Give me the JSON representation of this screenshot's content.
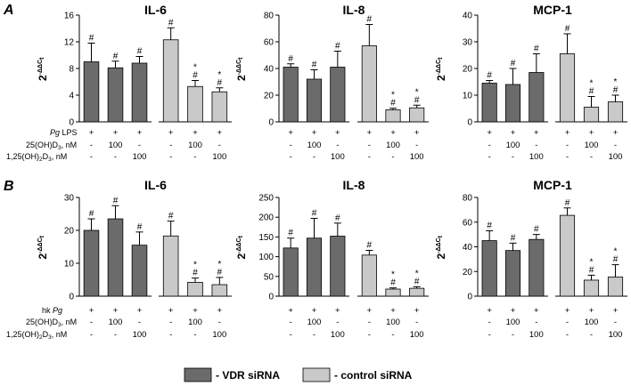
{
  "panels": [
    {
      "label": "A",
      "charts": [
        {
          "type": "bar",
          "title": "IL-6",
          "ylabel": "2^-ΔΔCt",
          "ylim": [
            0,
            16
          ],
          "yticks": [
            "0",
            "4",
            "8",
            "12",
            "16"
          ],
          "bars": [
            {
              "group": "VDR siRNA",
              "value": 9.0,
              "error": 2.8,
              "marks": [
                "#"
              ]
            },
            {
              "group": "VDR siRNA",
              "value": 8.1,
              "error": 1.0,
              "marks": [
                "#"
              ]
            },
            {
              "group": "VDR siRNA",
              "value": 8.8,
              "error": 1.0,
              "marks": [
                "#"
              ]
            },
            {
              "group": "control siRNA",
              "value": 12.3,
              "error": 1.8,
              "marks": [
                "#"
              ]
            },
            {
              "group": "control siRNA",
              "value": 5.3,
              "error": 0.9,
              "marks": [
                "#",
                "*"
              ]
            },
            {
              "group": "control siRNA",
              "value": 4.5,
              "error": 0.6,
              "marks": [
                "#",
                "*"
              ]
            }
          ],
          "conditions": [
            [
              "+",
              "+",
              "+",
              "+",
              "+",
              "+"
            ],
            [
              "-",
              "100",
              "-",
              "-",
              "100",
              "-"
            ],
            [
              "-",
              "-",
              "100",
              "-",
              "-",
              "100"
            ]
          ]
        },
        {
          "type": "bar",
          "title": "IL-8",
          "ylabel": "2^-ΔΔCt",
          "ylim": [
            0,
            80
          ],
          "yticks": [
            "0",
            "20",
            "40",
            "60",
            "80"
          ],
          "bars": [
            {
              "group": "VDR siRNA",
              "value": 41,
              "error": 2.5,
              "marks": [
                "#"
              ]
            },
            {
              "group": "VDR siRNA",
              "value": 32,
              "error": 7,
              "marks": [
                "#"
              ]
            },
            {
              "group": "VDR siRNA",
              "value": 41,
              "error": 12,
              "marks": [
                "#"
              ]
            },
            {
              "group": "control siRNA",
              "value": 57,
              "error": 16,
              "marks": [
                "#"
              ]
            },
            {
              "group": "control siRNA",
              "value": 9,
              "error": 1.2,
              "marks": [
                "#",
                "*"
              ]
            },
            {
              "group": "control siRNA",
              "value": 10.5,
              "error": 2,
              "marks": [
                "#",
                "*"
              ]
            }
          ],
          "conditions": [
            [
              "+",
              "+",
              "+",
              "+",
              "+",
              "+"
            ],
            [
              "-",
              "100",
              "-",
              "-",
              "100",
              "-"
            ],
            [
              "-",
              "-",
              "100",
              "-",
              "-",
              "100"
            ]
          ]
        },
        {
          "type": "bar",
          "title": "MCP-1",
          "ylabel": "2^-ΔΔCt",
          "ylim": [
            0,
            40
          ],
          "yticks": [
            "0",
            "10",
            "20",
            "30",
            "40"
          ],
          "bars": [
            {
              "group": "VDR siRNA",
              "value": 14.5,
              "error": 1,
              "marks": [
                "#"
              ]
            },
            {
              "group": "VDR siRNA",
              "value": 14,
              "error": 6,
              "marks": [
                "#"
              ]
            },
            {
              "group": "VDR siRNA",
              "value": 18.5,
              "error": 7,
              "marks": [
                "#"
              ]
            },
            {
              "group": "control siRNA",
              "value": 25.5,
              "error": 7.5,
              "marks": [
                "#"
              ]
            },
            {
              "group": "control siRNA",
              "value": 5.5,
              "error": 4,
              "marks": [
                "#",
                "*"
              ]
            },
            {
              "group": "control siRNA",
              "value": 7.5,
              "error": 2.5,
              "marks": [
                "#",
                "*"
              ]
            }
          ],
          "conditions": [
            [
              "+",
              "+",
              "+",
              "+",
              "+",
              "+"
            ],
            [
              "-",
              "100",
              "-",
              "-",
              "100",
              "-"
            ],
            [
              "-",
              "-",
              "100",
              "-",
              "-",
              "100"
            ]
          ]
        }
      ],
      "row_labels": [
        {
          "pre": "Pg",
          "post": " LPS"
        },
        {
          "pre": "25(OH)D",
          "sub": "3",
          "post": ", nM"
        },
        {
          "pre": "1,25(OH)",
          "sub1": "2",
          "mid": "D",
          "sub": "3",
          "post": ", nM"
        }
      ]
    },
    {
      "label": "B",
      "charts": [
        {
          "type": "bar",
          "title": "IL-6",
          "ylabel": "2^-ΔΔCt",
          "ylim": [
            0,
            30
          ],
          "yticks": [
            "0",
            "10",
            "20",
            "30"
          ],
          "bars": [
            {
              "group": "VDR siRNA",
              "value": 20,
              "error": 3.5,
              "marks": [
                "#"
              ]
            },
            {
              "group": "VDR siRNA",
              "value": 23.5,
              "error": 4,
              "marks": [
                "#"
              ]
            },
            {
              "group": "VDR siRNA",
              "value": 15.5,
              "error": 4,
              "marks": [
                "#"
              ]
            },
            {
              "group": "control siRNA",
              "value": 18.3,
              "error": 4.5,
              "marks": [
                "#"
              ]
            },
            {
              "group": "control siRNA",
              "value": 4.2,
              "error": 1.3,
              "marks": [
                "#",
                "*"
              ]
            },
            {
              "group": "control siRNA",
              "value": 3.5,
              "error": 2.2,
              "marks": [
                "#",
                "*"
              ]
            }
          ],
          "conditions": [
            [
              "+",
              "+",
              "+",
              "+",
              "+",
              "+"
            ],
            [
              "-",
              "100",
              "-",
              "-",
              "100",
              "-"
            ],
            [
              "-",
              "-",
              "100",
              "-",
              "-",
              "100"
            ]
          ]
        },
        {
          "type": "bar",
          "title": "IL-8",
          "ylabel": "2^-ΔΔCt",
          "ylim": [
            0,
            250
          ],
          "yticks": [
            "0",
            "50",
            "100",
            "150",
            "200",
            "250"
          ],
          "bars": [
            {
              "group": "VDR siRNA",
              "value": 122,
              "error": 25,
              "marks": [
                "#"
              ]
            },
            {
              "group": "VDR siRNA",
              "value": 147,
              "error": 50,
              "marks": [
                "#"
              ]
            },
            {
              "group": "VDR siRNA",
              "value": 152,
              "error": 33,
              "marks": [
                "#"
              ]
            },
            {
              "group": "control siRNA",
              "value": 104,
              "error": 12,
              "marks": [
                "#"
              ]
            },
            {
              "group": "control siRNA",
              "value": 18,
              "error": 3,
              "marks": [
                "#",
                "*"
              ]
            },
            {
              "group": "control siRNA",
              "value": 20,
              "error": 4,
              "marks": [
                "#",
                "*"
              ]
            }
          ],
          "conditions": [
            [
              "+",
              "+",
              "+",
              "+",
              "+",
              "+"
            ],
            [
              "-",
              "100",
              "-",
              "-",
              "100",
              "-"
            ],
            [
              "-",
              "-",
              "100",
              "-",
              "-",
              "100"
            ]
          ]
        },
        {
          "type": "bar",
          "title": "MCP-1",
          "ylabel": "2^-ΔΔCt",
          "ylim": [
            0,
            80
          ],
          "yticks": [
            "0",
            "20",
            "40",
            "60",
            "80"
          ],
          "bars": [
            {
              "group": "VDR siRNA",
              "value": 45,
              "error": 8,
              "marks": [
                "#"
              ]
            },
            {
              "group": "VDR siRNA",
              "value": 37,
              "error": 6,
              "marks": [
                "#"
              ]
            },
            {
              "group": "VDR siRNA",
              "value": 46,
              "error": 4,
              "marks": [
                "#"
              ]
            },
            {
              "group": "control siRNA",
              "value": 65.5,
              "error": 6,
              "marks": [
                "#"
              ]
            },
            {
              "group": "control siRNA",
              "value": 13,
              "error": 4,
              "marks": [
                "#",
                "*"
              ]
            },
            {
              "group": "control siRNA",
              "value": 15.5,
              "error": 10,
              "marks": [
                "#",
                "*"
              ]
            }
          ],
          "conditions": [
            [
              "+",
              "+",
              "+",
              "+",
              "+",
              "+"
            ],
            [
              "-",
              "100",
              "-",
              "-",
              "100",
              "-"
            ],
            [
              "-",
              "-",
              "100",
              "-",
              "-",
              "100"
            ]
          ]
        }
      ],
      "row_labels": [
        {
          "pre": "hk ",
          "ital": "Pg",
          "post": ""
        },
        {
          "pre": "25(OH)D",
          "sub": "3",
          "post": ", nM"
        },
        {
          "pre": "1,25(OH)",
          "sub1": "2",
          "mid": "D",
          "sub": "3",
          "post": ", nM"
        }
      ]
    }
  ],
  "legend": [
    {
      "label": "- VDR siRNA",
      "color": "#6b6b6b"
    },
    {
      "label": "- control siRNA",
      "color": "#c9c9c9"
    }
  ],
  "colors": {
    "vdr": "#6b6b6b",
    "control": "#c9c9c9",
    "stroke": "#000000"
  }
}
